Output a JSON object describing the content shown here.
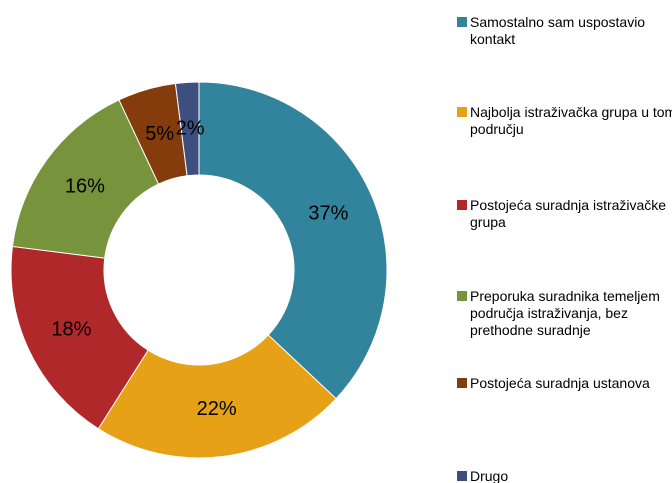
{
  "chart_data": {
    "type": "donut",
    "categories": [
      "Samostalno sam uspostavio kontakt",
      "Najbolja istraživačka grupa u tom području",
      "Postojeća suradnja istraživačke grupa",
      "Preporuka suradnika temeljem područja istraživanja, bez prethodne suradnje",
      "Postojeća suradnja ustanova",
      "Drugo"
    ],
    "values": [
      37,
      22,
      18,
      16,
      5,
      2
    ],
    "value_labels": [
      "37%",
      "22%",
      "18%",
      "16%",
      "5%",
      "2%"
    ],
    "colors": [
      "#31849b",
      "#e6a117",
      "#b0282a",
      "#77933c",
      "#843c0c",
      "#3d4f7f"
    ],
    "legend": "right"
  }
}
